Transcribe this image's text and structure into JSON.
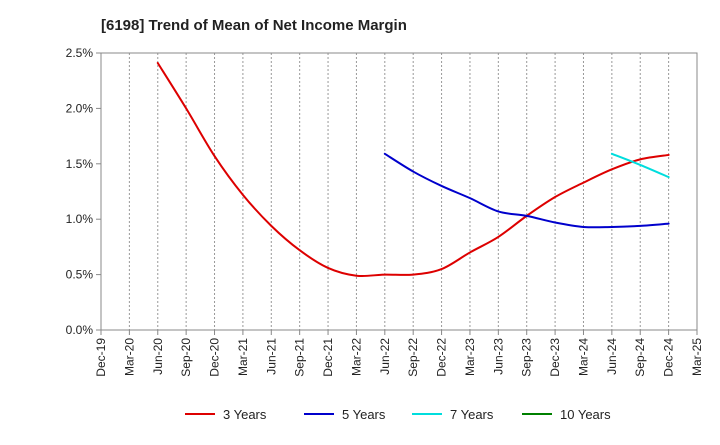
{
  "chart_data": {
    "type": "line",
    "title": "[6198]  Trend of Mean of Net Income Margin",
    "xlabel": "",
    "ylabel": "",
    "x": [
      "Dec-19",
      "Mar-20",
      "Jun-20",
      "Sep-20",
      "Dec-20",
      "Mar-21",
      "Jun-21",
      "Sep-21",
      "Dec-21",
      "Mar-22",
      "Jun-22",
      "Sep-22",
      "Dec-22",
      "Mar-23",
      "Jun-23",
      "Sep-23",
      "Dec-23",
      "Mar-24",
      "Jun-24",
      "Sep-24",
      "Dec-24",
      "Mar-25"
    ],
    "y_ticks": [
      "0.0%",
      "0.5%",
      "1.0%",
      "1.5%",
      "2.0%",
      "2.5%"
    ],
    "ylim": [
      0,
      2.5
    ],
    "y_unit": "%",
    "grid": "vertical dotted",
    "legend_position": "bottom",
    "series": [
      {
        "name": "3 Years",
        "color": "#dd0000",
        "values": [
          null,
          null,
          2.41,
          2.0,
          1.57,
          1.22,
          0.94,
          0.72,
          0.56,
          0.49,
          0.5,
          0.5,
          0.55,
          0.7,
          0.84,
          1.03,
          1.2,
          1.33,
          1.45,
          1.54,
          1.58,
          null
        ]
      },
      {
        "name": "5 Years",
        "color": "#0000cc",
        "values": [
          null,
          null,
          null,
          null,
          null,
          null,
          null,
          null,
          null,
          null,
          1.59,
          1.43,
          1.3,
          1.19,
          1.07,
          1.03,
          0.97,
          0.93,
          0.93,
          0.94,
          0.96,
          null
        ]
      },
      {
        "name": "7 Years",
        "color": "#00dddd",
        "values": [
          null,
          null,
          null,
          null,
          null,
          null,
          null,
          null,
          null,
          null,
          null,
          null,
          null,
          null,
          null,
          null,
          null,
          null,
          1.59,
          1.49,
          1.38,
          null
        ]
      },
      {
        "name": "10 Years",
        "color": "#008000",
        "values": [
          null,
          null,
          null,
          null,
          null,
          null,
          null,
          null,
          null,
          null,
          null,
          null,
          null,
          null,
          null,
          null,
          null,
          null,
          null,
          null,
          null,
          null
        ]
      }
    ]
  }
}
